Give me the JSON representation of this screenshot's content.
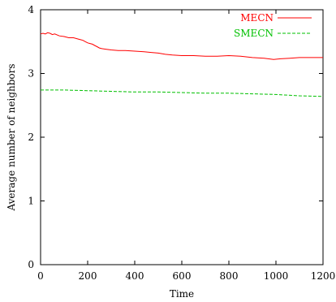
{
  "chart_data": {
    "type": "line",
    "title": "",
    "xlabel": "Time",
    "ylabel": "Average number of neighbors",
    "xlim": [
      0,
      1200
    ],
    "ylim": [
      0,
      4
    ],
    "xticks": [
      0,
      200,
      400,
      600,
      800,
      1000,
      1200
    ],
    "yticks": [
      0,
      1,
      2,
      3,
      4
    ],
    "grid": false,
    "legend_position": "top-right",
    "series": [
      {
        "name": "MECN",
        "color": "#ff0000",
        "dash": "solid",
        "points": [
          [
            0,
            3.62
          ],
          [
            10,
            3.63
          ],
          [
            20,
            3.62
          ],
          [
            30,
            3.64
          ],
          [
            40,
            3.63
          ],
          [
            50,
            3.61
          ],
          [
            60,
            3.62
          ],
          [
            80,
            3.59
          ],
          [
            100,
            3.58
          ],
          [
            120,
            3.56
          ],
          [
            140,
            3.56
          ],
          [
            160,
            3.54
          ],
          [
            170,
            3.53
          ],
          [
            180,
            3.52
          ],
          [
            190,
            3.5
          ],
          [
            200,
            3.48
          ],
          [
            210,
            3.47
          ],
          [
            220,
            3.46
          ],
          [
            230,
            3.44
          ],
          [
            240,
            3.42
          ],
          [
            250,
            3.4
          ],
          [
            260,
            3.39
          ],
          [
            280,
            3.38
          ],
          [
            300,
            3.37
          ],
          [
            330,
            3.36
          ],
          [
            360,
            3.36
          ],
          [
            400,
            3.35
          ],
          [
            440,
            3.34
          ],
          [
            470,
            3.33
          ],
          [
            500,
            3.32
          ],
          [
            530,
            3.3
          ],
          [
            560,
            3.29
          ],
          [
            600,
            3.28
          ],
          [
            650,
            3.28
          ],
          [
            700,
            3.27
          ],
          [
            750,
            3.27
          ],
          [
            800,
            3.28
          ],
          [
            850,
            3.27
          ],
          [
            900,
            3.25
          ],
          [
            950,
            3.24
          ],
          [
            990,
            3.22
          ],
          [
            1020,
            3.23
          ],
          [
            1060,
            3.24
          ],
          [
            1100,
            3.25
          ],
          [
            1150,
            3.25
          ],
          [
            1200,
            3.25
          ]
        ]
      },
      {
        "name": "SMECN",
        "color": "#00c000",
        "dash": "dashed",
        "points": [
          [
            0,
            2.74
          ],
          [
            100,
            2.74
          ],
          [
            200,
            2.73
          ],
          [
            300,
            2.72
          ],
          [
            400,
            2.71
          ],
          [
            500,
            2.71
          ],
          [
            600,
            2.7
          ],
          [
            700,
            2.69
          ],
          [
            800,
            2.69
          ],
          [
            900,
            2.68
          ],
          [
            1000,
            2.67
          ],
          [
            1100,
            2.65
          ],
          [
            1200,
            2.64
          ]
        ]
      }
    ]
  }
}
